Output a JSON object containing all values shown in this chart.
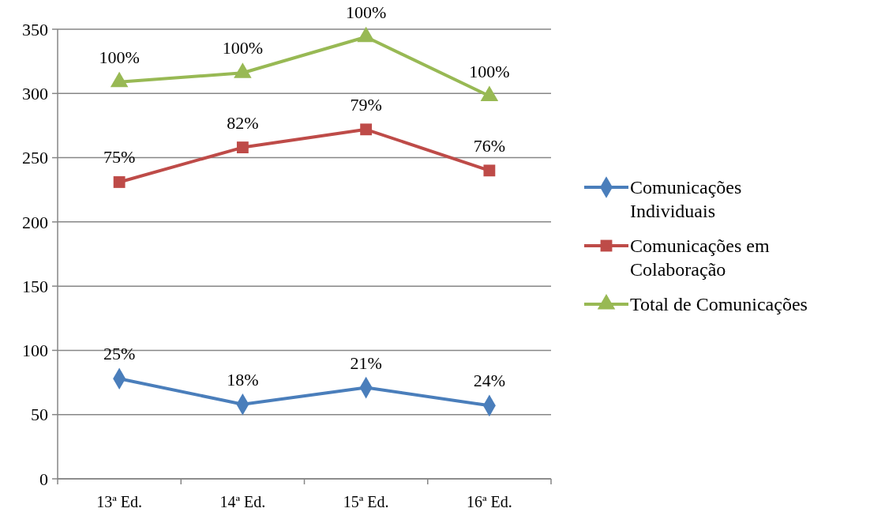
{
  "chart_data": {
    "type": "line",
    "categories": [
      "13ª Ed.",
      "14ª Ed.",
      "15ª Ed.",
      "16ª Ed."
    ],
    "ylim": [
      0,
      350
    ],
    "yticks": [
      0,
      50,
      100,
      150,
      200,
      250,
      300,
      350
    ],
    "grid": "y",
    "legend": "right",
    "series": [
      {
        "name": "Comunicações Individuais",
        "color": "#4a7ebb",
        "marker": "diamond",
        "values": [
          78,
          58,
          71,
          57
        ]
      },
      {
        "name": "Comunicações em Colaboração",
        "color": "#be4b48",
        "marker": "square",
        "values": [
          231,
          258,
          272,
          240
        ]
      },
      {
        "name": "Total de Comunicações",
        "color": "#98b954",
        "marker": "triangle",
        "values": [
          309,
          316,
          344,
          298
        ]
      }
    ],
    "annotations": [
      {
        "text": "25%",
        "x": "13ª Ed.",
        "y": 78
      },
      {
        "text": "18%",
        "x": "14ª Ed.",
        "y": 58
      },
      {
        "text": "21%",
        "x": "15ª Ed.",
        "y": 71
      },
      {
        "text": "24%",
        "x": "16ª Ed.",
        "y": 57
      },
      {
        "text": "75%",
        "x": "13ª Ed.",
        "y": 231
      },
      {
        "text": "82%",
        "x": "14ª Ed.",
        "y": 258
      },
      {
        "text": "79%",
        "x": "15ª Ed.",
        "y": 272
      },
      {
        "text": "76%",
        "x": "16ª Ed.",
        "y": 240
      },
      {
        "text": "100%",
        "x": "13ª Ed.",
        "y": 309
      },
      {
        "text": "100%",
        "x": "14ª Ed.",
        "y": 316
      },
      {
        "text": "100%",
        "x": "15ª Ed.",
        "y": 344
      },
      {
        "text": "100%",
        "x": "16ª Ed.",
        "y": 298
      }
    ]
  }
}
